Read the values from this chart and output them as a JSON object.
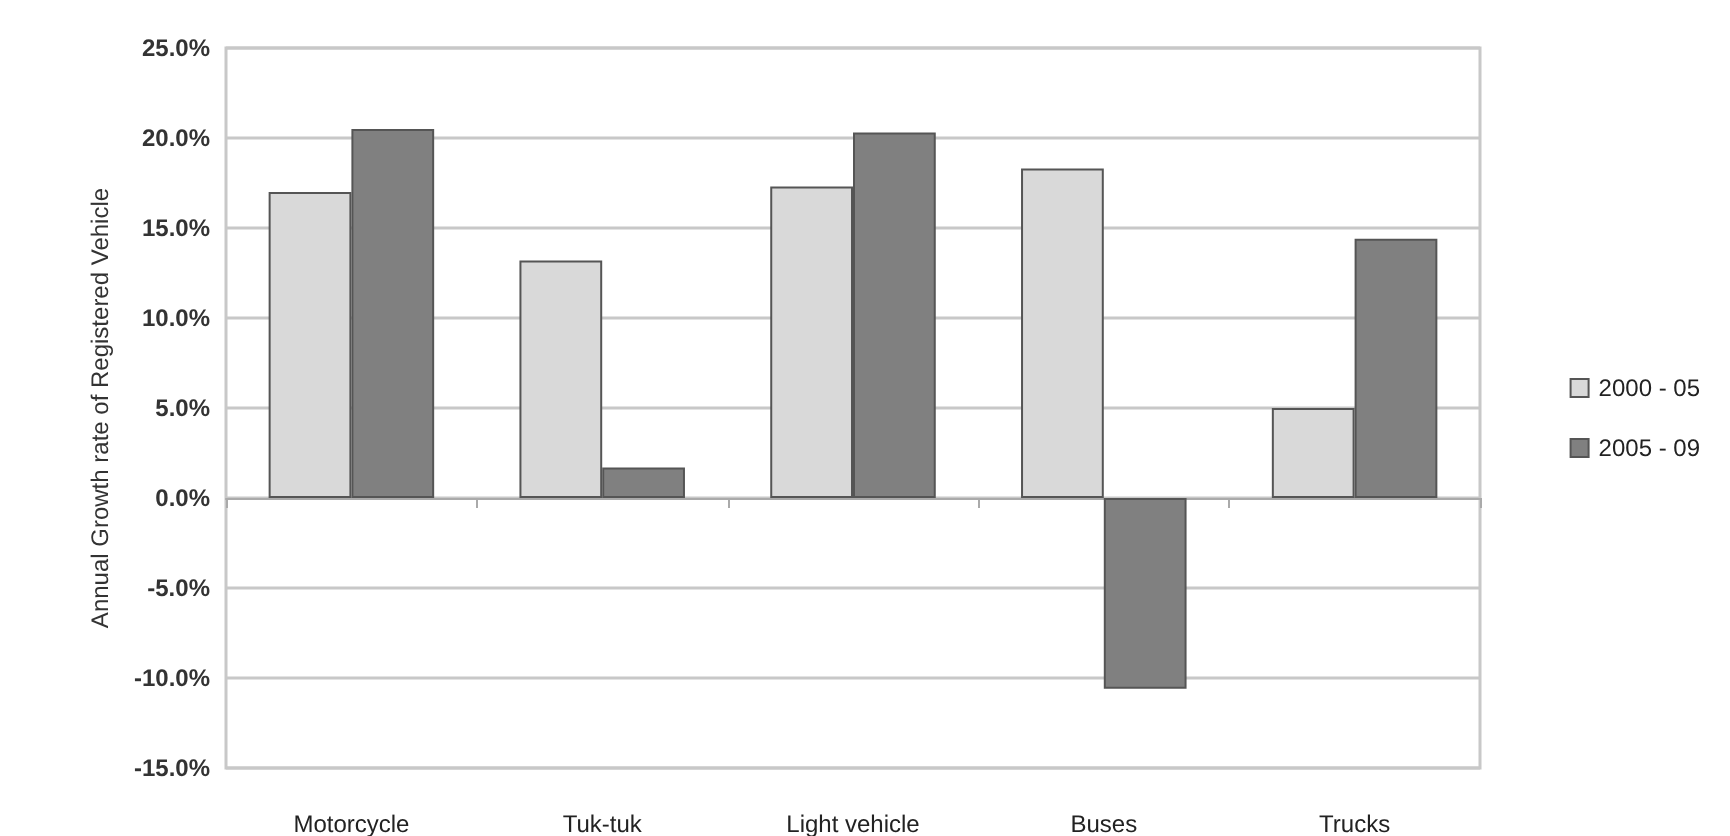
{
  "chart_data": {
    "type": "bar",
    "ylabel": "Annual Growth rate of Registered Vehicle",
    "categories": [
      "Motorcycle",
      "Tuk-tuk",
      "Light vehicle",
      "Buses",
      "Trucks"
    ],
    "series": [
      {
        "name": "2000 - 05",
        "color": "#d9d9d9",
        "values": [
          17.0,
          13.2,
          17.3,
          18.3,
          5.0
        ]
      },
      {
        "name": "2005 - 09",
        "color": "#808080",
        "values": [
          20.5,
          1.7,
          20.3,
          -10.6,
          14.4
        ]
      }
    ],
    "ylim": [
      -15,
      25
    ],
    "yticks": [
      {
        "value": -15,
        "label": "-15.0%"
      },
      {
        "value": -10,
        "label": "-10.0%"
      },
      {
        "value": -5,
        "label": "-5.0%"
      },
      {
        "value": 0,
        "label": "0.0%"
      },
      {
        "value": 5,
        "label": "5.0%"
      },
      {
        "value": 10,
        "label": "10.0%"
      },
      {
        "value": 15,
        "label": "15.0%"
      },
      {
        "value": 20,
        "label": "20.0%"
      },
      {
        "value": 25,
        "label": "25.0%"
      }
    ],
    "grid": "y",
    "legend": "right"
  }
}
